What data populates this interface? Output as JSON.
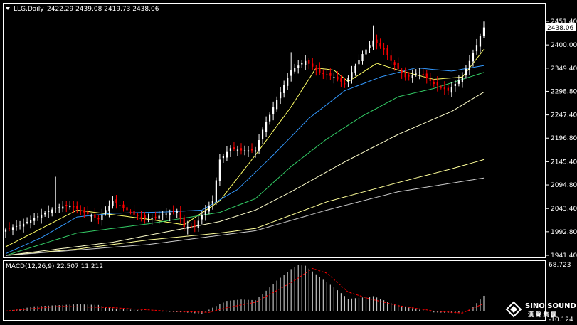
{
  "header": {
    "symbol": "LLG,Daily",
    "ohlc": "2422.29 2439.08 2419.73 2438.06",
    "arrow_icon": "triangle-down-icon"
  },
  "current_price": "2438.06",
  "macd": {
    "label": "MACD(12,26,9) 22.507 11.212",
    "max_label": "68.723",
    "min_label": "-10.124"
  },
  "watermark": {
    "line1": "SINO SOUND",
    "line2": "漢 聲 集 團",
    "icon": "diamond-logo-icon"
  },
  "colors": {
    "background": "#000000",
    "bull": "#ffffff",
    "bear": "#ff0000",
    "ma_fast": "#ffff66",
    "ma_mid": "#3399ff",
    "ma_slow": "#33cc66",
    "ma_100": "#ffffcc",
    "ma_200": "#ffff99",
    "ma_300": "#cccccc",
    "signal": "#ff0000",
    "histogram": "#c0c0c0"
  },
  "chart_data": [
    {
      "type": "candlestick",
      "title": "LLG,Daily",
      "y_ticks": [
        "2451.40",
        "2400.00",
        "2349.40",
        "2298.80",
        "2247.40",
        "2196.80",
        "2145.40",
        "2094.80",
        "2043.40",
        "1992.80",
        "1941.40"
      ],
      "ylim": [
        1941.4,
        2451.4
      ],
      "n_bars": 135,
      "last_close": 2438.06,
      "close_anchors": [
        [
          0,
          1998
        ],
        [
          5,
          2010
        ],
        [
          10,
          2030
        ],
        [
          14,
          2045
        ],
        [
          18,
          2050
        ],
        [
          22,
          2035
        ],
        [
          26,
          2020
        ],
        [
          30,
          2060
        ],
        [
          33,
          2045
        ],
        [
          36,
          2030
        ],
        [
          40,
          2020
        ],
        [
          44,
          2030
        ],
        [
          48,
          2038
        ],
        [
          50,
          2003
        ],
        [
          53,
          2005
        ],
        [
          56,
          2040
        ],
        [
          58,
          2060
        ],
        [
          60,
          2150
        ],
        [
          63,
          2175
        ],
        [
          66,
          2170
        ],
        [
          70,
          2170
        ],
        [
          72,
          2215
        ],
        [
          76,
          2280
        ],
        [
          80,
          2345
        ],
        [
          84,
          2365
        ],
        [
          88,
          2340
        ],
        [
          92,
          2330
        ],
        [
          95,
          2315
        ],
        [
          100,
          2380
        ],
        [
          103,
          2410
        ],
        [
          106,
          2390
        ],
        [
          108,
          2365
        ],
        [
          112,
          2330
        ],
        [
          116,
          2340
        ],
        [
          120,
          2315
        ],
        [
          124,
          2300
        ],
        [
          128,
          2330
        ],
        [
          132,
          2400
        ],
        [
          134,
          2438
        ]
      ],
      "moving_averages": [
        {
          "name": "MA fast",
          "color": "#ffff66",
          "anchors": [
            [
              0,
              1960
            ],
            [
              20,
              2040
            ],
            [
              40,
              2020
            ],
            [
              50,
              2008
            ],
            [
              60,
              2060
            ],
            [
              70,
              2160
            ],
            [
              80,
              2265
            ],
            [
              87,
              2350
            ],
            [
              92,
              2345
            ],
            [
              96,
              2320
            ],
            [
              104,
              2360
            ],
            [
              110,
              2345
            ],
            [
              120,
              2325
            ],
            [
              128,
              2330
            ],
            [
              134,
              2390
            ]
          ]
        },
        {
          "name": "MA mid",
          "color": "#3399ff",
          "anchors": [
            [
              0,
              1945
            ],
            [
              10,
              1980
            ],
            [
              20,
              2025
            ],
            [
              30,
              2033
            ],
            [
              45,
              2036
            ],
            [
              55,
              2040
            ],
            [
              65,
              2085
            ],
            [
              75,
              2160
            ],
            [
              85,
              2240
            ],
            [
              95,
              2300
            ],
            [
              105,
              2330
            ],
            [
              115,
              2350
            ],
            [
              125,
              2343
            ],
            [
              134,
              2355
            ]
          ]
        },
        {
          "name": "MA slow",
          "color": "#33cc66",
          "anchors": [
            [
              0,
              1941
            ],
            [
              20,
              1990
            ],
            [
              40,
              2010
            ],
            [
              60,
              2035
            ],
            [
              70,
              2065
            ],
            [
              80,
              2135
            ],
            [
              90,
              2195
            ],
            [
              100,
              2245
            ],
            [
              110,
              2287
            ],
            [
              120,
              2305
            ],
            [
              134,
              2340
            ]
          ]
        },
        {
          "name": "MA 100",
          "color": "#ffffcc",
          "anchors": [
            [
              0,
              1941
            ],
            [
              30,
              1970
            ],
            [
              60,
              2015
            ],
            [
              70,
              2040
            ],
            [
              80,
              2080
            ],
            [
              95,
              2145
            ],
            [
              110,
              2205
            ],
            [
              125,
              2255
            ],
            [
              134,
              2297
            ]
          ]
        },
        {
          "name": "MA 200",
          "color": "#ffff99",
          "anchors": [
            [
              0,
              1941
            ],
            [
              20,
              1955
            ],
            [
              40,
              1975
            ],
            [
              60,
              1990
            ],
            [
              70,
              2000
            ],
            [
              90,
              2058
            ],
            [
              110,
              2100
            ],
            [
              125,
              2130
            ],
            [
              134,
              2150
            ]
          ]
        },
        {
          "name": "MA 300",
          "color": "#cccccc",
          "anchors": [
            [
              0,
              1941
            ],
            [
              40,
              1965
            ],
            [
              70,
              1995
            ],
            [
              90,
              2040
            ],
            [
              110,
              2080
            ],
            [
              134,
              2110
            ]
          ]
        }
      ]
    },
    {
      "type": "bar",
      "title": "MACD(12,26,9) 22.507 11.212",
      "ylim": [
        -10.124,
        68.723
      ],
      "macd_anchors": [
        [
          0,
          0
        ],
        [
          4,
          3
        ],
        [
          8,
          7
        ],
        [
          12,
          8
        ],
        [
          20,
          10
        ],
        [
          26,
          9
        ],
        [
          30,
          4
        ],
        [
          40,
          0
        ],
        [
          50,
          -2
        ],
        [
          55,
          -4
        ],
        [
          58,
          5
        ],
        [
          62,
          15
        ],
        [
          66,
          17
        ],
        [
          70,
          16
        ],
        [
          72,
          25
        ],
        [
          76,
          45
        ],
        [
          80,
          62
        ],
        [
          82,
          68
        ],
        [
          84,
          67
        ],
        [
          88,
          50
        ],
        [
          92,
          35
        ],
        [
          96,
          18
        ],
        [
          100,
          20
        ],
        [
          103,
          22
        ],
        [
          108,
          12
        ],
        [
          112,
          6
        ],
        [
          116,
          2
        ],
        [
          120,
          -2
        ],
        [
          126,
          -3
        ],
        [
          130,
          1
        ],
        [
          134,
          22.5
        ]
      ],
      "signal_anchors": [
        [
          0,
          0
        ],
        [
          15,
          7
        ],
        [
          30,
          5
        ],
        [
          45,
          0
        ],
        [
          57,
          -2
        ],
        [
          62,
          5
        ],
        [
          70,
          13
        ],
        [
          80,
          42
        ],
        [
          86,
          63
        ],
        [
          90,
          56
        ],
        [
          96,
          28
        ],
        [
          102,
          18
        ],
        [
          110,
          8
        ],
        [
          120,
          0
        ],
        [
          128,
          -3
        ],
        [
          134,
          11.2
        ]
      ]
    }
  ]
}
